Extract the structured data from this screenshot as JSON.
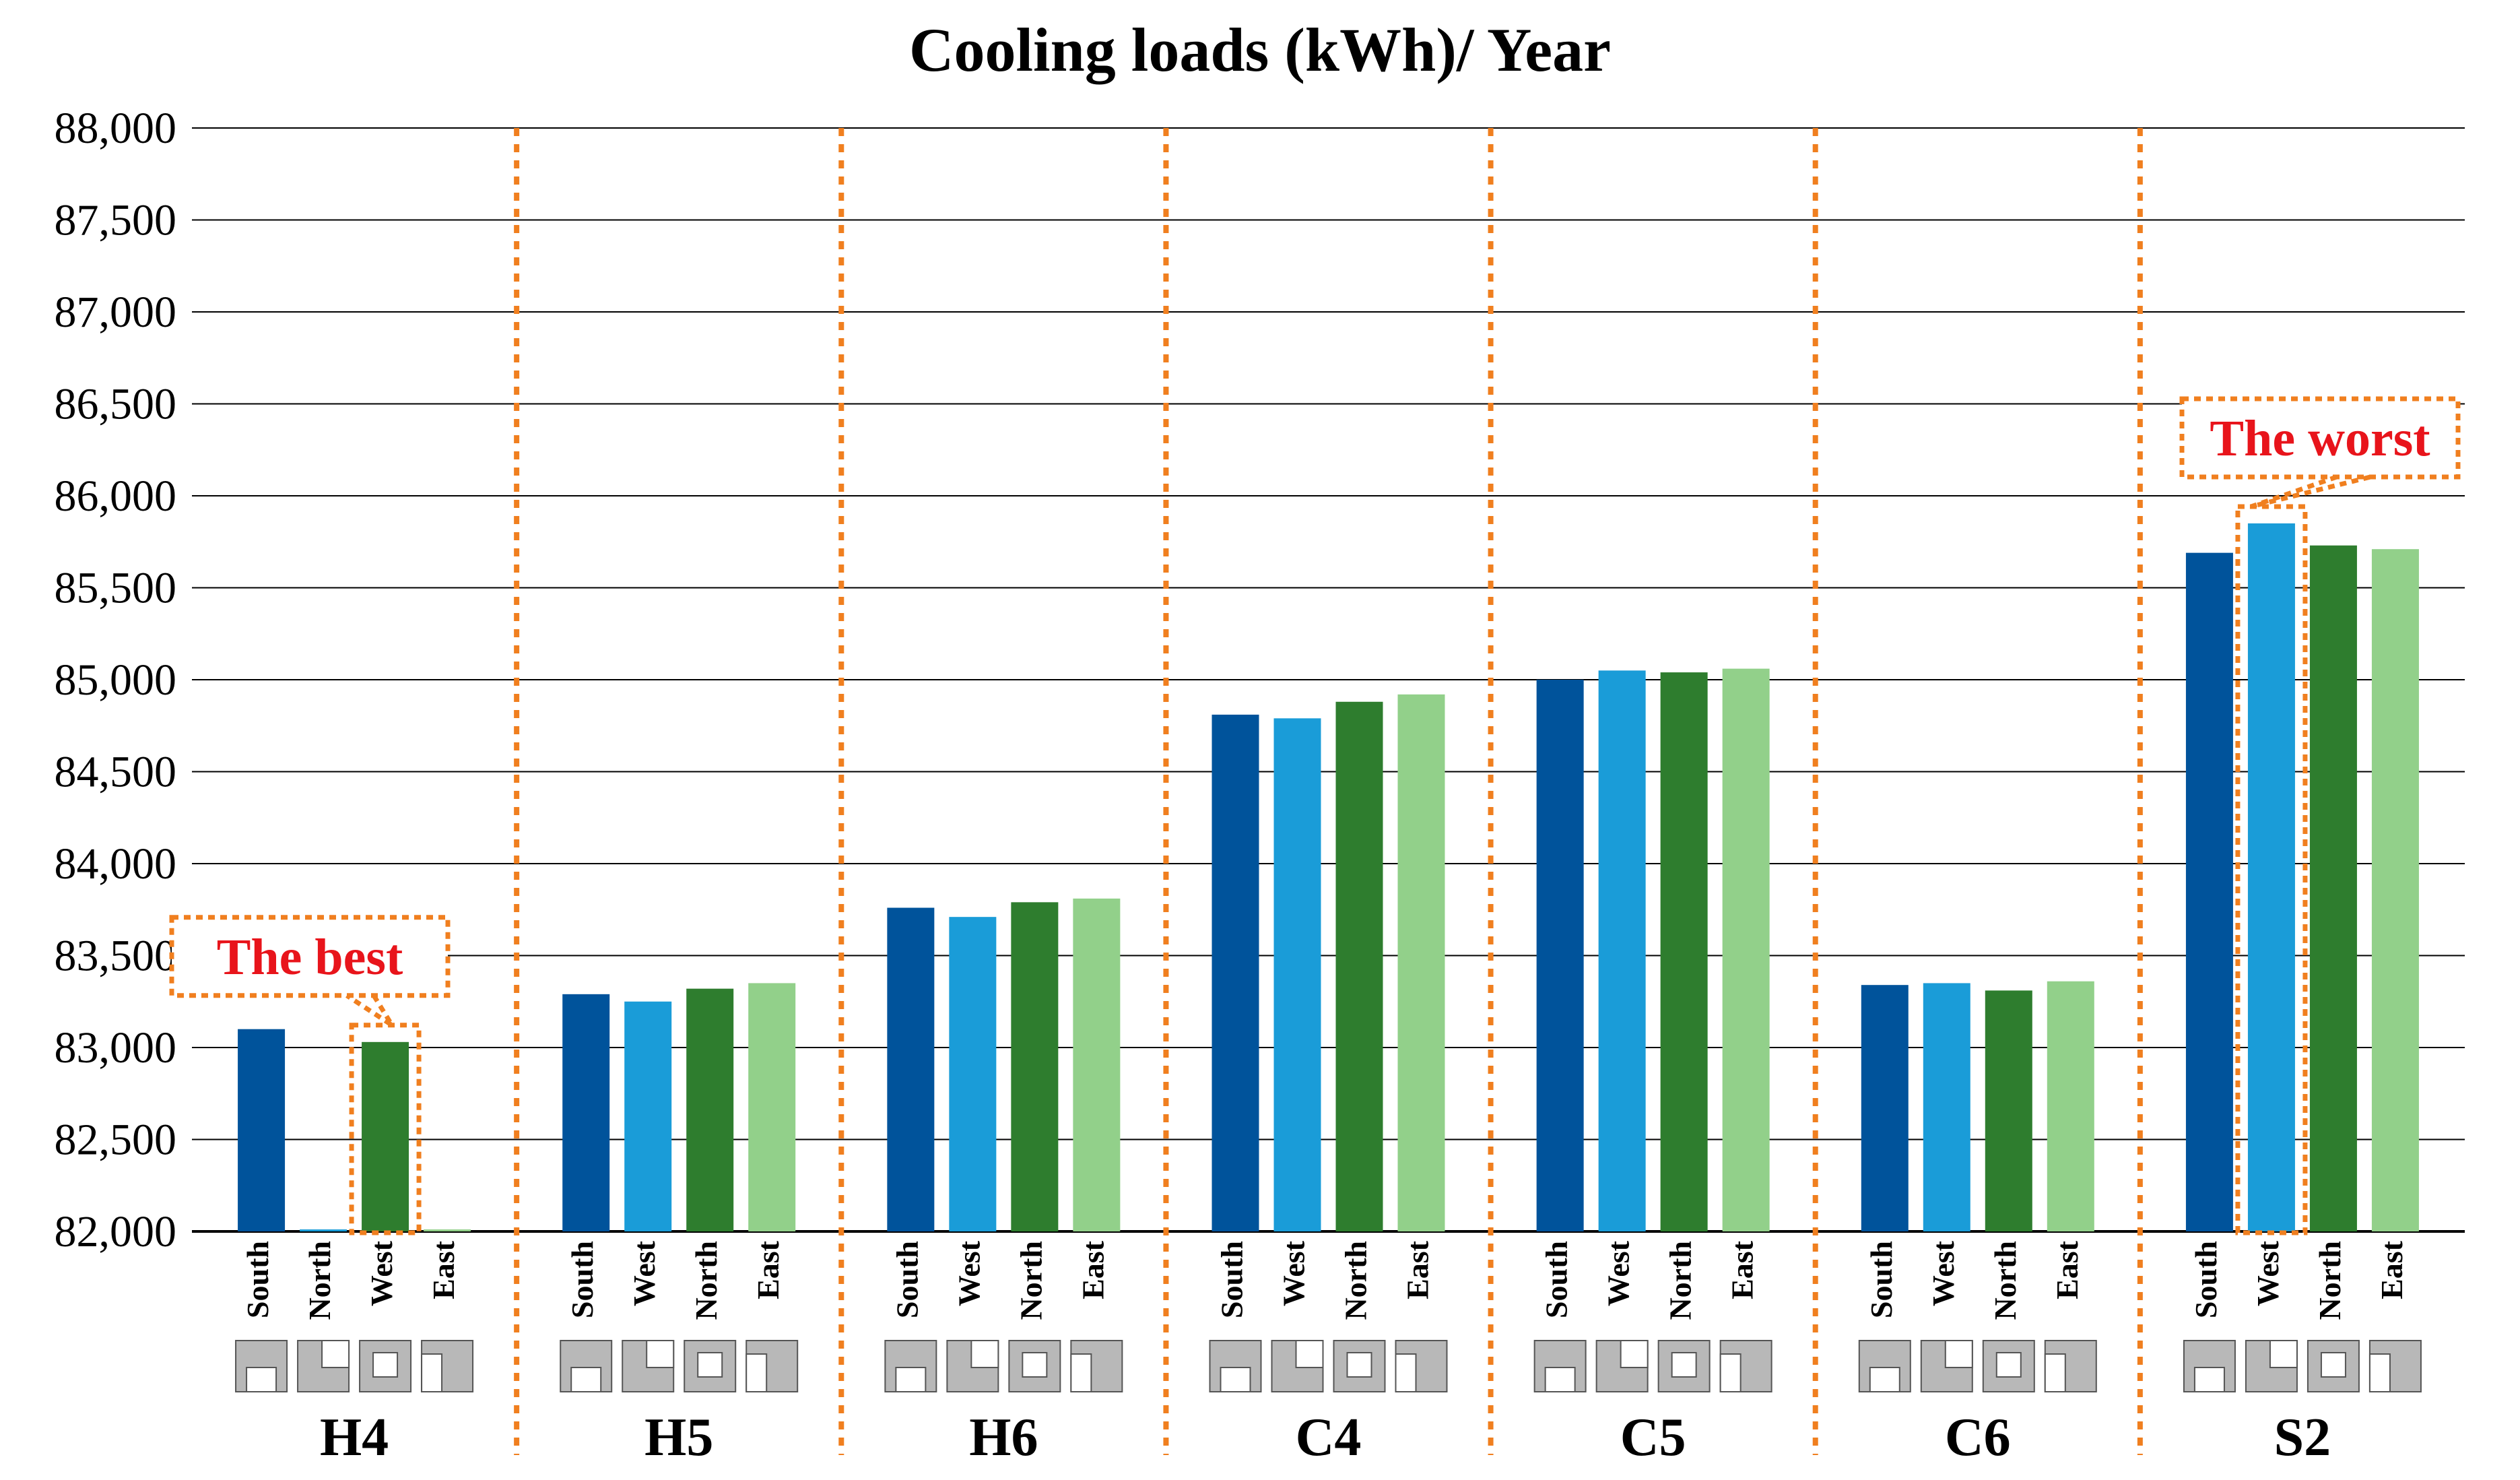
{
  "chart_data": {
    "type": "bar",
    "title": "Cooling loads (kWh)/ Year",
    "xlabel": "",
    "ylabel": "",
    "ylim": [
      82000,
      88000
    ],
    "yticks": [
      82000,
      82500,
      83000,
      83500,
      84000,
      84500,
      85000,
      85500,
      86000,
      86500,
      87000,
      87500,
      88000
    ],
    "ytick_labels": [
      "82,000",
      "82,500",
      "83,000",
      "83,500",
      "84,000",
      "84,500",
      "85,000",
      "85,500",
      "86,000",
      "86,500",
      "87,000",
      "87,500",
      "88,000"
    ],
    "grid": true,
    "series_colors": [
      "#00539b",
      "#1a9cd8",
      "#2e7d2e",
      "#92d08a"
    ],
    "separator_color": "#f07f1f",
    "groups": [
      {
        "name": "H4",
        "bars": [
          {
            "label": "South",
            "value": 83100
          },
          {
            "label": "North",
            "value": 82000
          },
          {
            "label": "West",
            "value": 83030
          },
          {
            "label": "East",
            "value": 82000
          }
        ]
      },
      {
        "name": "H5",
        "bars": [
          {
            "label": "South",
            "value": 83290
          },
          {
            "label": "West",
            "value": 83250
          },
          {
            "label": "North",
            "value": 83320
          },
          {
            "label": "East",
            "value": 83350
          }
        ]
      },
      {
        "name": "H6",
        "bars": [
          {
            "label": "South",
            "value": 83760
          },
          {
            "label": "West",
            "value": 83710
          },
          {
            "label": "North",
            "value": 83790
          },
          {
            "label": "East",
            "value": 83810
          }
        ]
      },
      {
        "name": "C4",
        "bars": [
          {
            "label": "South",
            "value": 84810
          },
          {
            "label": "West",
            "value": 84790
          },
          {
            "label": "North",
            "value": 84880
          },
          {
            "label": "East",
            "value": 84920
          }
        ]
      },
      {
        "name": "C5",
        "bars": [
          {
            "label": "South",
            "value": 85000
          },
          {
            "label": "West",
            "value": 85050
          },
          {
            "label": "North",
            "value": 85040
          },
          {
            "label": "East",
            "value": 85060
          }
        ]
      },
      {
        "name": "C6",
        "bars": [
          {
            "label": "South",
            "value": 83340
          },
          {
            "label": "West",
            "value": 83350
          },
          {
            "label": "North",
            "value": 83310
          },
          {
            "label": "East",
            "value": 83360
          }
        ]
      },
      {
        "name": "S2",
        "bars": [
          {
            "label": "South",
            "value": 85690
          },
          {
            "label": "West",
            "value": 85850
          },
          {
            "label": "North",
            "value": 85730
          },
          {
            "label": "East",
            "value": 85710
          }
        ]
      }
    ],
    "annotations": [
      {
        "text": "The best",
        "group": 0,
        "bar": 2
      },
      {
        "text": "The worst",
        "group": 6,
        "bar": 1
      }
    ]
  }
}
